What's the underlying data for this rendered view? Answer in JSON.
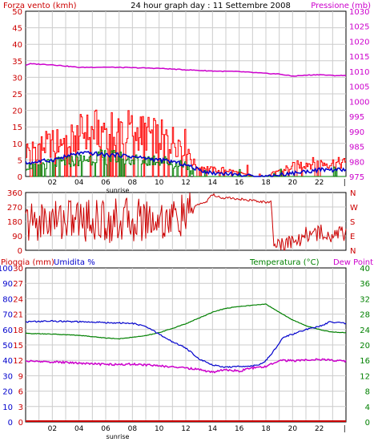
{
  "chart_data": [
    {
      "type": "line",
      "title": "24 hour graph day : 11 Settembre 2008",
      "left_axis_label": "Forza vento (kmh)",
      "right_axis_label": "Pressione (mb)",
      "x_tick_labels": [
        "02",
        "04",
        "06",
        "08",
        "10",
        "12",
        "14",
        "16",
        "18",
        "20",
        "22"
      ],
      "x_sub_label": "sunrise",
      "end_tick": "|",
      "x_range_hours": [
        0,
        24
      ],
      "left_ylim": [
        0,
        50
      ],
      "left_ticks": [
        "0",
        "5",
        "10",
        "15",
        "20",
        "25",
        "30",
        "35",
        "40",
        "45",
        "50"
      ],
      "right_ylim": [
        975,
        1030
      ],
      "right_ticks": [
        "975",
        "980",
        "985",
        "990",
        "995",
        "1000",
        "1005",
        "1010",
        "1015",
        "1020",
        "1025",
        "1030"
      ],
      "grid": true,
      "colors": {
        "gust": "#ff0000",
        "wind": "#008000",
        "avg": "#0000cc",
        "pressure": "#cc00cc"
      },
      "series": [
        {
          "axis": "right",
          "points": [
            [
              0,
              1012
            ],
            [
              0.3,
              1012.5
            ],
            [
              2,
              1012.2
            ],
            [
              4,
              1011.3
            ],
            [
              6,
              1011.4
            ],
            [
              8,
              1011.2
            ],
            [
              10,
              1011.0
            ],
            [
              12,
              1010.5
            ],
            [
              14,
              1010.1
            ],
            [
              16,
              1009.9
            ],
            [
              18,
              1009.3
            ],
            [
              19,
              1009.1
            ],
            [
              20,
              1008.4
            ],
            [
              21,
              1008.7
            ],
            [
              22,
              1008.9
            ],
            [
              23,
              1008.6
            ],
            [
              24,
              1008.6
            ]
          ]
        },
        {
          "axis": "left",
          "profile": "gust",
          "points": [
            [
              0,
              8
            ],
            [
              1,
              9
            ],
            [
              2,
              10
            ],
            [
              3,
              11
            ],
            [
              4,
              13
            ],
            [
              5,
              14
            ],
            [
              6,
              15
            ],
            [
              7,
              15
            ],
            [
              8,
              14
            ],
            [
              9,
              13
            ],
            [
              10,
              12
            ],
            [
              11,
              11
            ],
            [
              12,
              10
            ],
            [
              12.5,
              4
            ],
            [
              13,
              3
            ],
            [
              14,
              2
            ],
            [
              15,
              2
            ],
            [
              16,
              1
            ],
            [
              17,
              0
            ],
            [
              18,
              0
            ],
            [
              19,
              2
            ],
            [
              20,
              3
            ],
            [
              21,
              4
            ],
            [
              22,
              4
            ],
            [
              23,
              4
            ],
            [
              24,
              4
            ]
          ]
        },
        {
          "axis": "left",
          "profile": "wind",
          "points": [
            [
              0,
              3
            ],
            [
              2,
              4
            ],
            [
              4,
              5
            ],
            [
              6,
              6
            ],
            [
              8,
              5
            ],
            [
              10,
              5
            ],
            [
              11,
              4
            ],
            [
              12,
              4
            ],
            [
              12.5,
              0
            ],
            [
              24,
              0
            ]
          ]
        },
        {
          "axis": "left",
          "profile": "avg",
          "points": [
            [
              0,
              4
            ],
            [
              1,
              4.5
            ],
            [
              2,
              5
            ],
            [
              3,
              6
            ],
            [
              4,
              7
            ],
            [
              5,
              7
            ],
            [
              6,
              6.5
            ],
            [
              7,
              6.5
            ],
            [
              8,
              6
            ],
            [
              9,
              5.5
            ],
            [
              10,
              5
            ],
            [
              11,
              4.5
            ],
            [
              12,
              3.5
            ],
            [
              13,
              2
            ],
            [
              14,
              1
            ],
            [
              15,
              1
            ],
            [
              16,
              0.5
            ],
            [
              17,
              0
            ],
            [
              18,
              0
            ],
            [
              19,
              0.5
            ],
            [
              20,
              1
            ],
            [
              21,
              1.5
            ],
            [
              22,
              2
            ],
            [
              23,
              2
            ],
            [
              24,
              2
            ]
          ]
        }
      ]
    },
    {
      "type": "line",
      "x_range_hours": [
        0,
        24
      ],
      "left_ylim": [
        0,
        360
      ],
      "left_ticks": [
        "0",
        "90",
        "180",
        "270",
        "360"
      ],
      "right_ticks": [
        "N",
        "E",
        "S",
        "W",
        "N"
      ],
      "grid": true,
      "colors": {
        "direction": "#cc0000"
      },
      "series": [
        {
          "profile": "direction",
          "points": [
            [
              0,
              170
            ],
            [
              1,
              180
            ],
            [
              2,
              190
            ],
            [
              3,
              200
            ],
            [
              4,
              190
            ],
            [
              5,
              190
            ],
            [
              6,
              180
            ],
            [
              7,
              190
            ],
            [
              8,
              190
            ],
            [
              9,
              200
            ],
            [
              10,
              190
            ],
            [
              11,
              200
            ],
            [
              12,
              210
            ],
            [
              12.8,
              280
            ],
            [
              13.5,
              300
            ],
            [
              14,
              350
            ],
            [
              14.5,
              330
            ],
            [
              16,
              320
            ],
            [
              18,
              300
            ],
            [
              18.4,
              300
            ],
            [
              18.6,
              20
            ],
            [
              19,
              40
            ],
            [
              20,
              60
            ],
            [
              21,
              100
            ],
            [
              22,
              110
            ],
            [
              23,
              110
            ],
            [
              24,
              90
            ]
          ]
        }
      ]
    },
    {
      "type": "line",
      "left_axis_label": "Pioggia (mm)",
      "humidity_label": "Umidita %",
      "right_axis_label": "Temperatura (°C)",
      "dew_label": "Dew Point",
      "x_tick_labels": [
        "02",
        "04",
        "06",
        "08",
        "10",
        "12",
        "14",
        "16",
        "18",
        "20",
        "22"
      ],
      "x_sub_label": "sunrise",
      "end_tick": "|",
      "x_range_hours": [
        0,
        24
      ],
      "rain_ticks": [
        "0",
        "3",
        "6",
        "9",
        "12",
        "15",
        "18",
        "21",
        "24",
        "27",
        "30"
      ],
      "humidity_ticks": [
        "0",
        "10",
        "20",
        "30",
        "40",
        "50",
        "60",
        "70",
        "80",
        "90",
        "100"
      ],
      "temp_ticks": [
        "0",
        "4",
        "8",
        "12",
        "16",
        "20",
        "24",
        "28",
        "32",
        "36",
        "40"
      ],
      "humidity_ylim": [
        0,
        100
      ],
      "temp_ylim": [
        0,
        40
      ],
      "grid": true,
      "colors": {
        "humidity": "#0000cc",
        "temperature": "#008000",
        "dewpoint": "#cc00cc",
        "rain": "#cc0000"
      },
      "series": [
        {
          "axis": "humidity",
          "points": [
            [
              0,
              65
            ],
            [
              2,
              65.5
            ],
            [
              4,
              65
            ],
            [
              6,
              64.5
            ],
            [
              8,
              64
            ],
            [
              9,
              62
            ],
            [
              10,
              57
            ],
            [
              11,
              52
            ],
            [
              12,
              48
            ],
            [
              13,
              41
            ],
            [
              14,
              37
            ],
            [
              15,
              35.5
            ],
            [
              16,
              36
            ],
            [
              17,
              36.5
            ],
            [
              17.8,
              38
            ],
            [
              18.5,
              45
            ],
            [
              19.3,
              55
            ],
            [
              20,
              57
            ],
            [
              21,
              60
            ],
            [
              22,
              62
            ],
            [
              22.8,
              65
            ],
            [
              23.5,
              64.5
            ],
            [
              24,
              64
            ]
          ]
        },
        {
          "axis": "temp",
          "points": [
            [
              0,
              23
            ],
            [
              2,
              22.8
            ],
            [
              4,
              22.5
            ],
            [
              6,
              21.8
            ],
            [
              7,
              21.6
            ],
            [
              8,
              22
            ],
            [
              9,
              22.4
            ],
            [
              10,
              23.2
            ],
            [
              11,
              24.3
            ],
            [
              12,
              25.5
            ],
            [
              13,
              27
            ],
            [
              14,
              28.5
            ],
            [
              15,
              29.5
            ],
            [
              16,
              30
            ],
            [
              17,
              30.3
            ],
            [
              18,
              30.6
            ],
            [
              19,
              28.5
            ],
            [
              20,
              26.5
            ],
            [
              21,
              25
            ],
            [
              22,
              24
            ],
            [
              23,
              23.3
            ],
            [
              24,
              23.2
            ]
          ]
        },
        {
          "axis": "temp",
          "points": [
            [
              0,
              15.8
            ],
            [
              2,
              15.6
            ],
            [
              4,
              15.3
            ],
            [
              6,
              14.9
            ],
            [
              8,
              15
            ],
            [
              10,
              14.6
            ],
            [
              12,
              14
            ],
            [
              13,
              13.6
            ],
            [
              14,
              12.9
            ],
            [
              15,
              13.6
            ],
            [
              16,
              13.2
            ],
            [
              17,
              14
            ],
            [
              18,
              14.3
            ],
            [
              19,
              16
            ],
            [
              20,
              15.9
            ],
            [
              21,
              16
            ],
            [
              22,
              16.2
            ],
            [
              23,
              16
            ],
            [
              24,
              15.8
            ]
          ]
        },
        {
          "axis": "rain",
          "points": [
            [
              0,
              0
            ],
            [
              24,
              0
            ]
          ]
        }
      ]
    }
  ]
}
